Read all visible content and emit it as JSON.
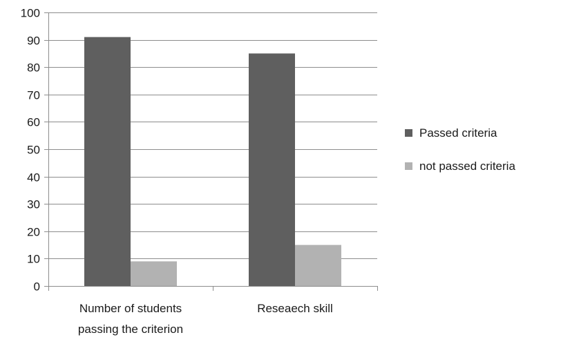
{
  "chart_data": {
    "type": "bar",
    "categories": [
      [
        "Number of students",
        "passing the criterion"
      ],
      [
        "Reseaech skill"
      ]
    ],
    "series": [
      {
        "name": "Passed criteria",
        "values": [
          91,
          85
        ],
        "color": "#5f5f5f"
      },
      {
        "name": "not passed criteria",
        "values": [
          9,
          15
        ],
        "color": "#b2b2b2"
      }
    ],
    "ylim": [
      0,
      100
    ],
    "yticks": [
      0,
      10,
      20,
      30,
      40,
      50,
      60,
      70,
      80,
      90,
      100
    ],
    "grid": true,
    "legend_position": "right",
    "axis_color": "#8c8c8c",
    "grid_color": "#8c8c8c"
  }
}
